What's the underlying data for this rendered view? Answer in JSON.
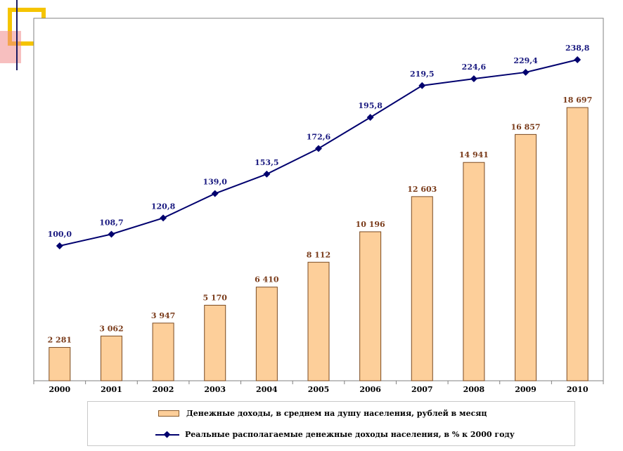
{
  "colors": {
    "bar_fill": "#fdcf9a",
    "bar_stroke": "#7a4a20",
    "line": "#00006e",
    "bar_label": "#7a3b1a",
    "line_label": "#1a1a80",
    "deco_yellow": "#f5c400",
    "deco_red": "#f08a8a"
  },
  "chart_data": {
    "type": "bar+line",
    "categories": [
      "2000",
      "2001",
      "2002",
      "2003",
      "2004",
      "2005",
      "2006",
      "2007",
      "2008",
      "2009",
      "2010"
    ],
    "series": [
      {
        "name": "Денежные доходы, в среднем на душу населения, рублей в месяц",
        "type": "bar",
        "values": [
          2281,
          3062,
          3947,
          5170,
          6410,
          8112,
          10196,
          12603,
          14941,
          16857,
          18697
        ],
        "labels": [
          "2 281",
          "3 062",
          "3 947",
          "5 170",
          "6 410",
          "8 112",
          "10 196",
          "12 603",
          "14 941",
          "16 857",
          "18 697"
        ]
      },
      {
        "name": "Реальные располагаемые денежные доходы населения, в % к 2000 году",
        "type": "line",
        "values": [
          100.0,
          108.7,
          120.8,
          139.0,
          153.5,
          172.6,
          195.8,
          219.5,
          224.6,
          229.4,
          238.8
        ],
        "labels": [
          "100,0",
          "108,7",
          "120,8",
          "139,0",
          "153,5",
          "172,6",
          "195,8",
          "219,5",
          "224,6",
          "229,4",
          "238,8"
        ]
      }
    ],
    "title": "",
    "xlabel": "",
    "ylabel": "",
    "bar_ylim": [
      0,
      20000
    ],
    "line_ylim": [
      0,
      270
    ],
    "grid": false,
    "legend_position": "bottom"
  },
  "legend": {
    "bar_text": "Денежные доходы, в среднем на душу населения, рублей в месяц",
    "line_text": "Реальные располагаемые денежные доходы населения, в % к 2000 году"
  }
}
